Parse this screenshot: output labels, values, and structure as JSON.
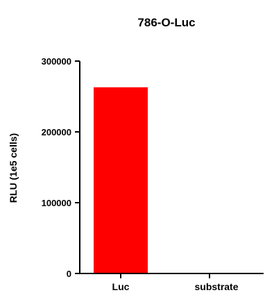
{
  "chart_data": {
    "type": "bar",
    "title": "786-O-Luc",
    "xlabel": "",
    "ylabel": "RLU (1e5 cells)",
    "categories": [
      "Luc",
      "substrate"
    ],
    "values": [
      263000,
      0
    ],
    "ylim": [
      0,
      300000
    ],
    "yticks": [
      0,
      100000,
      200000,
      300000
    ],
    "ytick_labels": [
      "0",
      "100000",
      "200000",
      "300000"
    ],
    "bar_color": "#ff0000",
    "grid": false,
    "legend": "none"
  }
}
